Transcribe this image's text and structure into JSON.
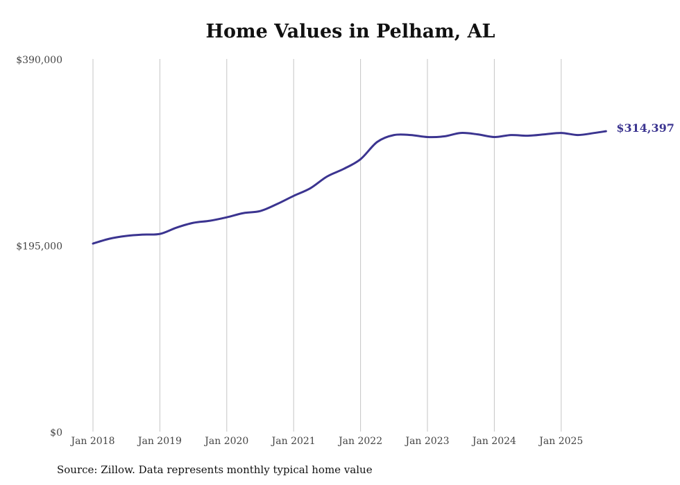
{
  "chart_data": {
    "type": "line",
    "title": "Home Values in Pelham, AL",
    "source": "Source: Zillow. Data represents monthly typical home value",
    "xlabel": "",
    "ylabel": "",
    "ylim": [
      0,
      390000
    ],
    "yticks": [
      0,
      195000,
      390000
    ],
    "ytick_labels": [
      "$0",
      "$195,000",
      "$390,000"
    ],
    "xticks": [
      2018,
      2019,
      2020,
      2021,
      2022,
      2023,
      2024,
      2025
    ],
    "xtick_labels": [
      "Jan 2018",
      "Jan 2019",
      "Jan 2020",
      "Jan 2021",
      "Jan 2022",
      "Jan 2023",
      "Jan 2024",
      "Jan 2025"
    ],
    "xlim": [
      2018,
      2025.67
    ],
    "grid": "vertical",
    "line_color": "#3b3490",
    "end_label": "$314,397",
    "series": [
      {
        "name": "Typical home value",
        "x": [
          2018,
          2018.25,
          2018.5,
          2018.75,
          2019,
          2019.25,
          2019.5,
          2019.75,
          2020,
          2020.25,
          2020.5,
          2020.75,
          2021,
          2021.25,
          2021.5,
          2021.75,
          2022,
          2022.25,
          2022.5,
          2022.75,
          2023,
          2023.25,
          2023.5,
          2023.75,
          2024,
          2024.25,
          2024.5,
          2024.75,
          2025,
          2025.25,
          2025.5,
          2025.67
        ],
        "values": [
          196800,
          201900,
          204800,
          206200,
          206900,
          213500,
          218500,
          220700,
          224300,
          228700,
          230800,
          238100,
          246700,
          254700,
          267000,
          275000,
          285100,
          303200,
          310400,
          310400,
          308300,
          309000,
          312600,
          311100,
          308300,
          310400,
          309700,
          311100,
          312600,
          310400,
          312600,
          314397
        ]
      }
    ]
  }
}
